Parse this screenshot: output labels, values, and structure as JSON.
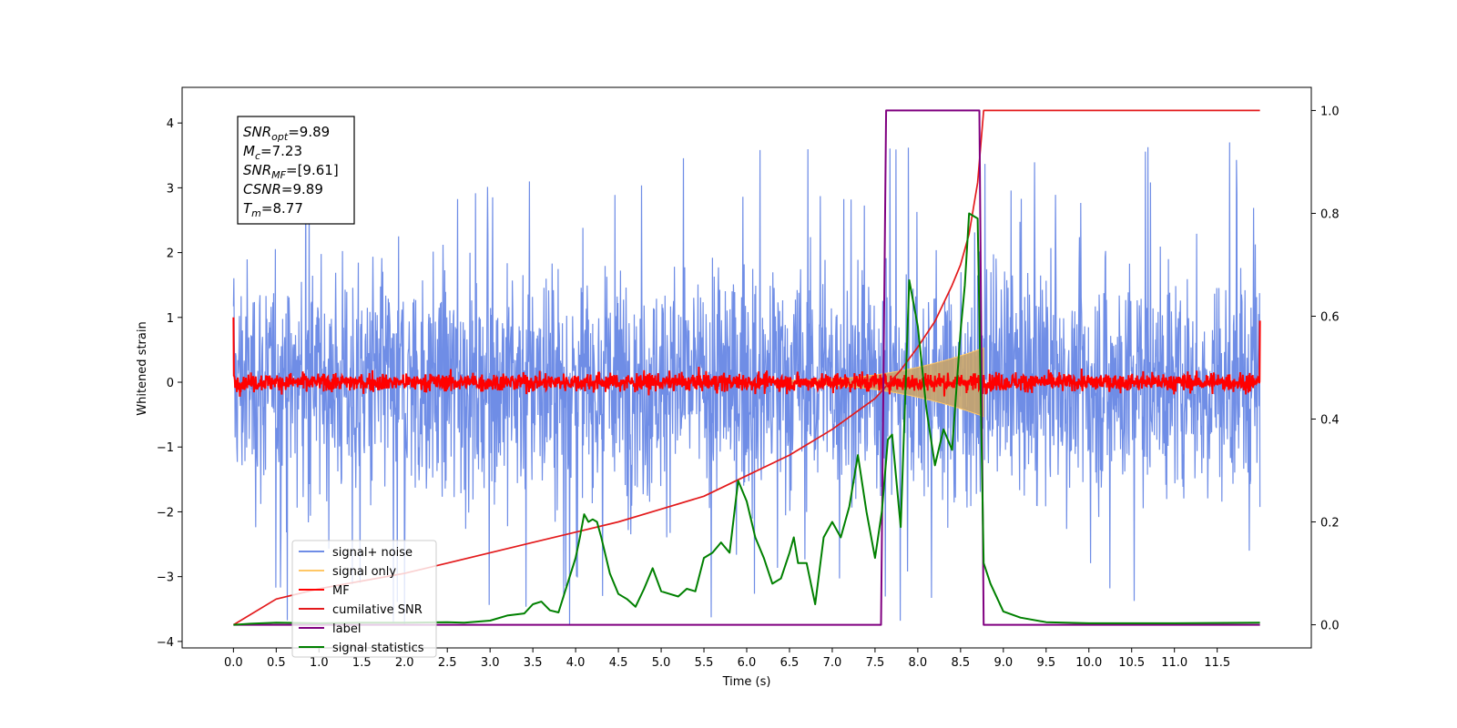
{
  "chart_data": {
    "type": "line",
    "title": "",
    "xlabel": "Time (s)",
    "ylabel": "Whitened strain",
    "xlim": [
      -0.6,
      12.6
    ],
    "ylim": [
      -4.1,
      4.55
    ],
    "y2lim": [
      -0.045,
      1.045
    ],
    "xticks": [
      0.0,
      0.5,
      1.0,
      1.5,
      2.0,
      2.5,
      3.0,
      3.5,
      4.0,
      4.5,
      5.0,
      5.5,
      6.0,
      6.5,
      7.0,
      7.5,
      8.0,
      8.5,
      9.0,
      9.5,
      10.0,
      10.5,
      11.0,
      11.5
    ],
    "xtick_labels": [
      "0.0",
      "0.5",
      "1.0",
      "1.5",
      "2.0",
      "2.5",
      "3.0",
      "3.5",
      "4.0",
      "4.5",
      "5.0",
      "5.5",
      "6.0",
      "6.5",
      "7.0",
      "7.5",
      "8.0",
      "8.5",
      "9.0",
      "9.5",
      "10.0",
      "10.5",
      "11.0",
      "11.5"
    ],
    "yticks": [
      -4,
      -3,
      -2,
      -1,
      0,
      1,
      2,
      3,
      4
    ],
    "ytick_labels": [
      "−4",
      "−3",
      "−2",
      "−1",
      "0",
      "1",
      "2",
      "3",
      "4"
    ],
    "y2ticks": [
      0.0,
      0.2,
      0.4,
      0.6,
      0.8,
      1.0
    ],
    "y2tick_labels": [
      "0.0",
      "0.2",
      "0.4",
      "0.6",
      "0.8",
      "1.0"
    ],
    "grid": false,
    "legend_position": "lower-left",
    "legend": [
      {
        "label": "signal+ noise",
        "color": "#6f8de6"
      },
      {
        "label": "signal only",
        "color": "#ffc766"
      },
      {
        "label": "MF",
        "color": "#ff0000"
      },
      {
        "label": "cumilative SNR",
        "color": "#e31a1c"
      },
      {
        "label": "label",
        "color": "#800080"
      },
      {
        "label": "signal statistics",
        "color": "#008000"
      }
    ],
    "annotation": [
      {
        "main": "SNR",
        "sub": "opt",
        "tail": "=9.89"
      },
      {
        "main": "M",
        "sub": "c",
        "tail": "=7.23"
      },
      {
        "main": "SNR",
        "sub": "MF",
        "tail": "=[9.61]"
      },
      {
        "main": "CSNR",
        "sub": "",
        "tail": "=9.89"
      },
      {
        "main": "T",
        "sub": "m",
        "tail": "=8.77"
      }
    ],
    "series": [
      {
        "name": "signal+ noise",
        "axis": "left",
        "color": "#6f8de6",
        "style": "noise",
        "x_range": [
          0.0,
          12.0
        ],
        "amplitude_std": 1.1,
        "y_max": 4.15,
        "y_min": -3.75
      },
      {
        "name": "signal only",
        "axis": "left",
        "color": "#ffc766",
        "style": "chirp",
        "x_range": [
          6.5,
          8.77
        ],
        "envelope_max": 0.5
      },
      {
        "name": "MF",
        "axis": "left",
        "color": "#ff0000",
        "style": "noise",
        "x_range": [
          0.0,
          12.0
        ],
        "amplitude_std": 0.05,
        "start_value": 1.0,
        "end_value": 0.95
      },
      {
        "name": "cumilative SNR",
        "axis": "right",
        "x": [
          0.0,
          0.5,
          1.0,
          1.5,
          2.0,
          2.5,
          3.0,
          3.5,
          4.0,
          4.5,
          5.0,
          5.5,
          6.0,
          6.5,
          7.0,
          7.5,
          7.8,
          8.0,
          8.2,
          8.4,
          8.5,
          8.6,
          8.7,
          8.77,
          9.0,
          10.0,
          11.0,
          12.0
        ],
        "y": [
          0.0,
          0.05,
          0.07,
          0.085,
          0.1,
          0.12,
          0.14,
          0.16,
          0.18,
          0.2,
          0.225,
          0.25,
          0.29,
          0.33,
          0.38,
          0.44,
          0.495,
          0.54,
          0.59,
          0.66,
          0.7,
          0.76,
          0.86,
          1.0,
          1.0,
          1.0,
          1.0,
          1.0
        ]
      },
      {
        "name": "label",
        "axis": "right",
        "color": "#800080",
        "x": [
          0.0,
          7.57,
          7.63,
          8.72,
          8.77,
          12.0
        ],
        "y": [
          0.0,
          0.0,
          1.0,
          1.0,
          0.0,
          0.0
        ]
      },
      {
        "name": "signal statistics",
        "axis": "right",
        "color": "#008000",
        "x": [
          0.0,
          0.2,
          0.5,
          1.0,
          1.5,
          2.0,
          2.5,
          2.7,
          3.0,
          3.2,
          3.4,
          3.5,
          3.6,
          3.7,
          3.8,
          4.0,
          4.05,
          4.1,
          4.15,
          4.2,
          4.25,
          4.3,
          4.4,
          4.5,
          4.6,
          4.7,
          4.8,
          4.9,
          5.0,
          5.1,
          5.2,
          5.3,
          5.4,
          5.5,
          5.6,
          5.7,
          5.8,
          5.9,
          6.0,
          6.1,
          6.2,
          6.3,
          6.4,
          6.5,
          6.55,
          6.6,
          6.7,
          6.8,
          6.9,
          7.0,
          7.1,
          7.2,
          7.3,
          7.4,
          7.5,
          7.58,
          7.65,
          7.7,
          7.8,
          7.9,
          8.0,
          8.1,
          8.2,
          8.3,
          8.4,
          8.5,
          8.55,
          8.6,
          8.7,
          8.77,
          8.85,
          9.0,
          9.2,
          9.5,
          10.0,
          11.0,
          12.0
        ],
        "y": [
          0.0,
          0.002,
          0.004,
          0.003,
          0.004,
          0.004,
          0.005,
          0.004,
          0.008,
          0.018,
          0.022,
          0.04,
          0.045,
          0.028,
          0.024,
          0.13,
          0.17,
          0.215,
          0.2,
          0.205,
          0.2,
          0.17,
          0.1,
          0.06,
          0.05,
          0.035,
          0.07,
          0.11,
          0.065,
          0.06,
          0.055,
          0.07,
          0.065,
          0.13,
          0.14,
          0.16,
          0.14,
          0.28,
          0.24,
          0.17,
          0.13,
          0.08,
          0.09,
          0.14,
          0.17,
          0.12,
          0.12,
          0.04,
          0.17,
          0.2,
          0.17,
          0.23,
          0.33,
          0.22,
          0.13,
          0.22,
          0.36,
          0.37,
          0.19,
          0.67,
          0.58,
          0.42,
          0.31,
          0.38,
          0.34,
          0.57,
          0.66,
          0.8,
          0.79,
          0.12,
          0.08,
          0.026,
          0.014,
          0.005,
          0.003,
          0.003,
          0.004
        ]
      }
    ]
  }
}
